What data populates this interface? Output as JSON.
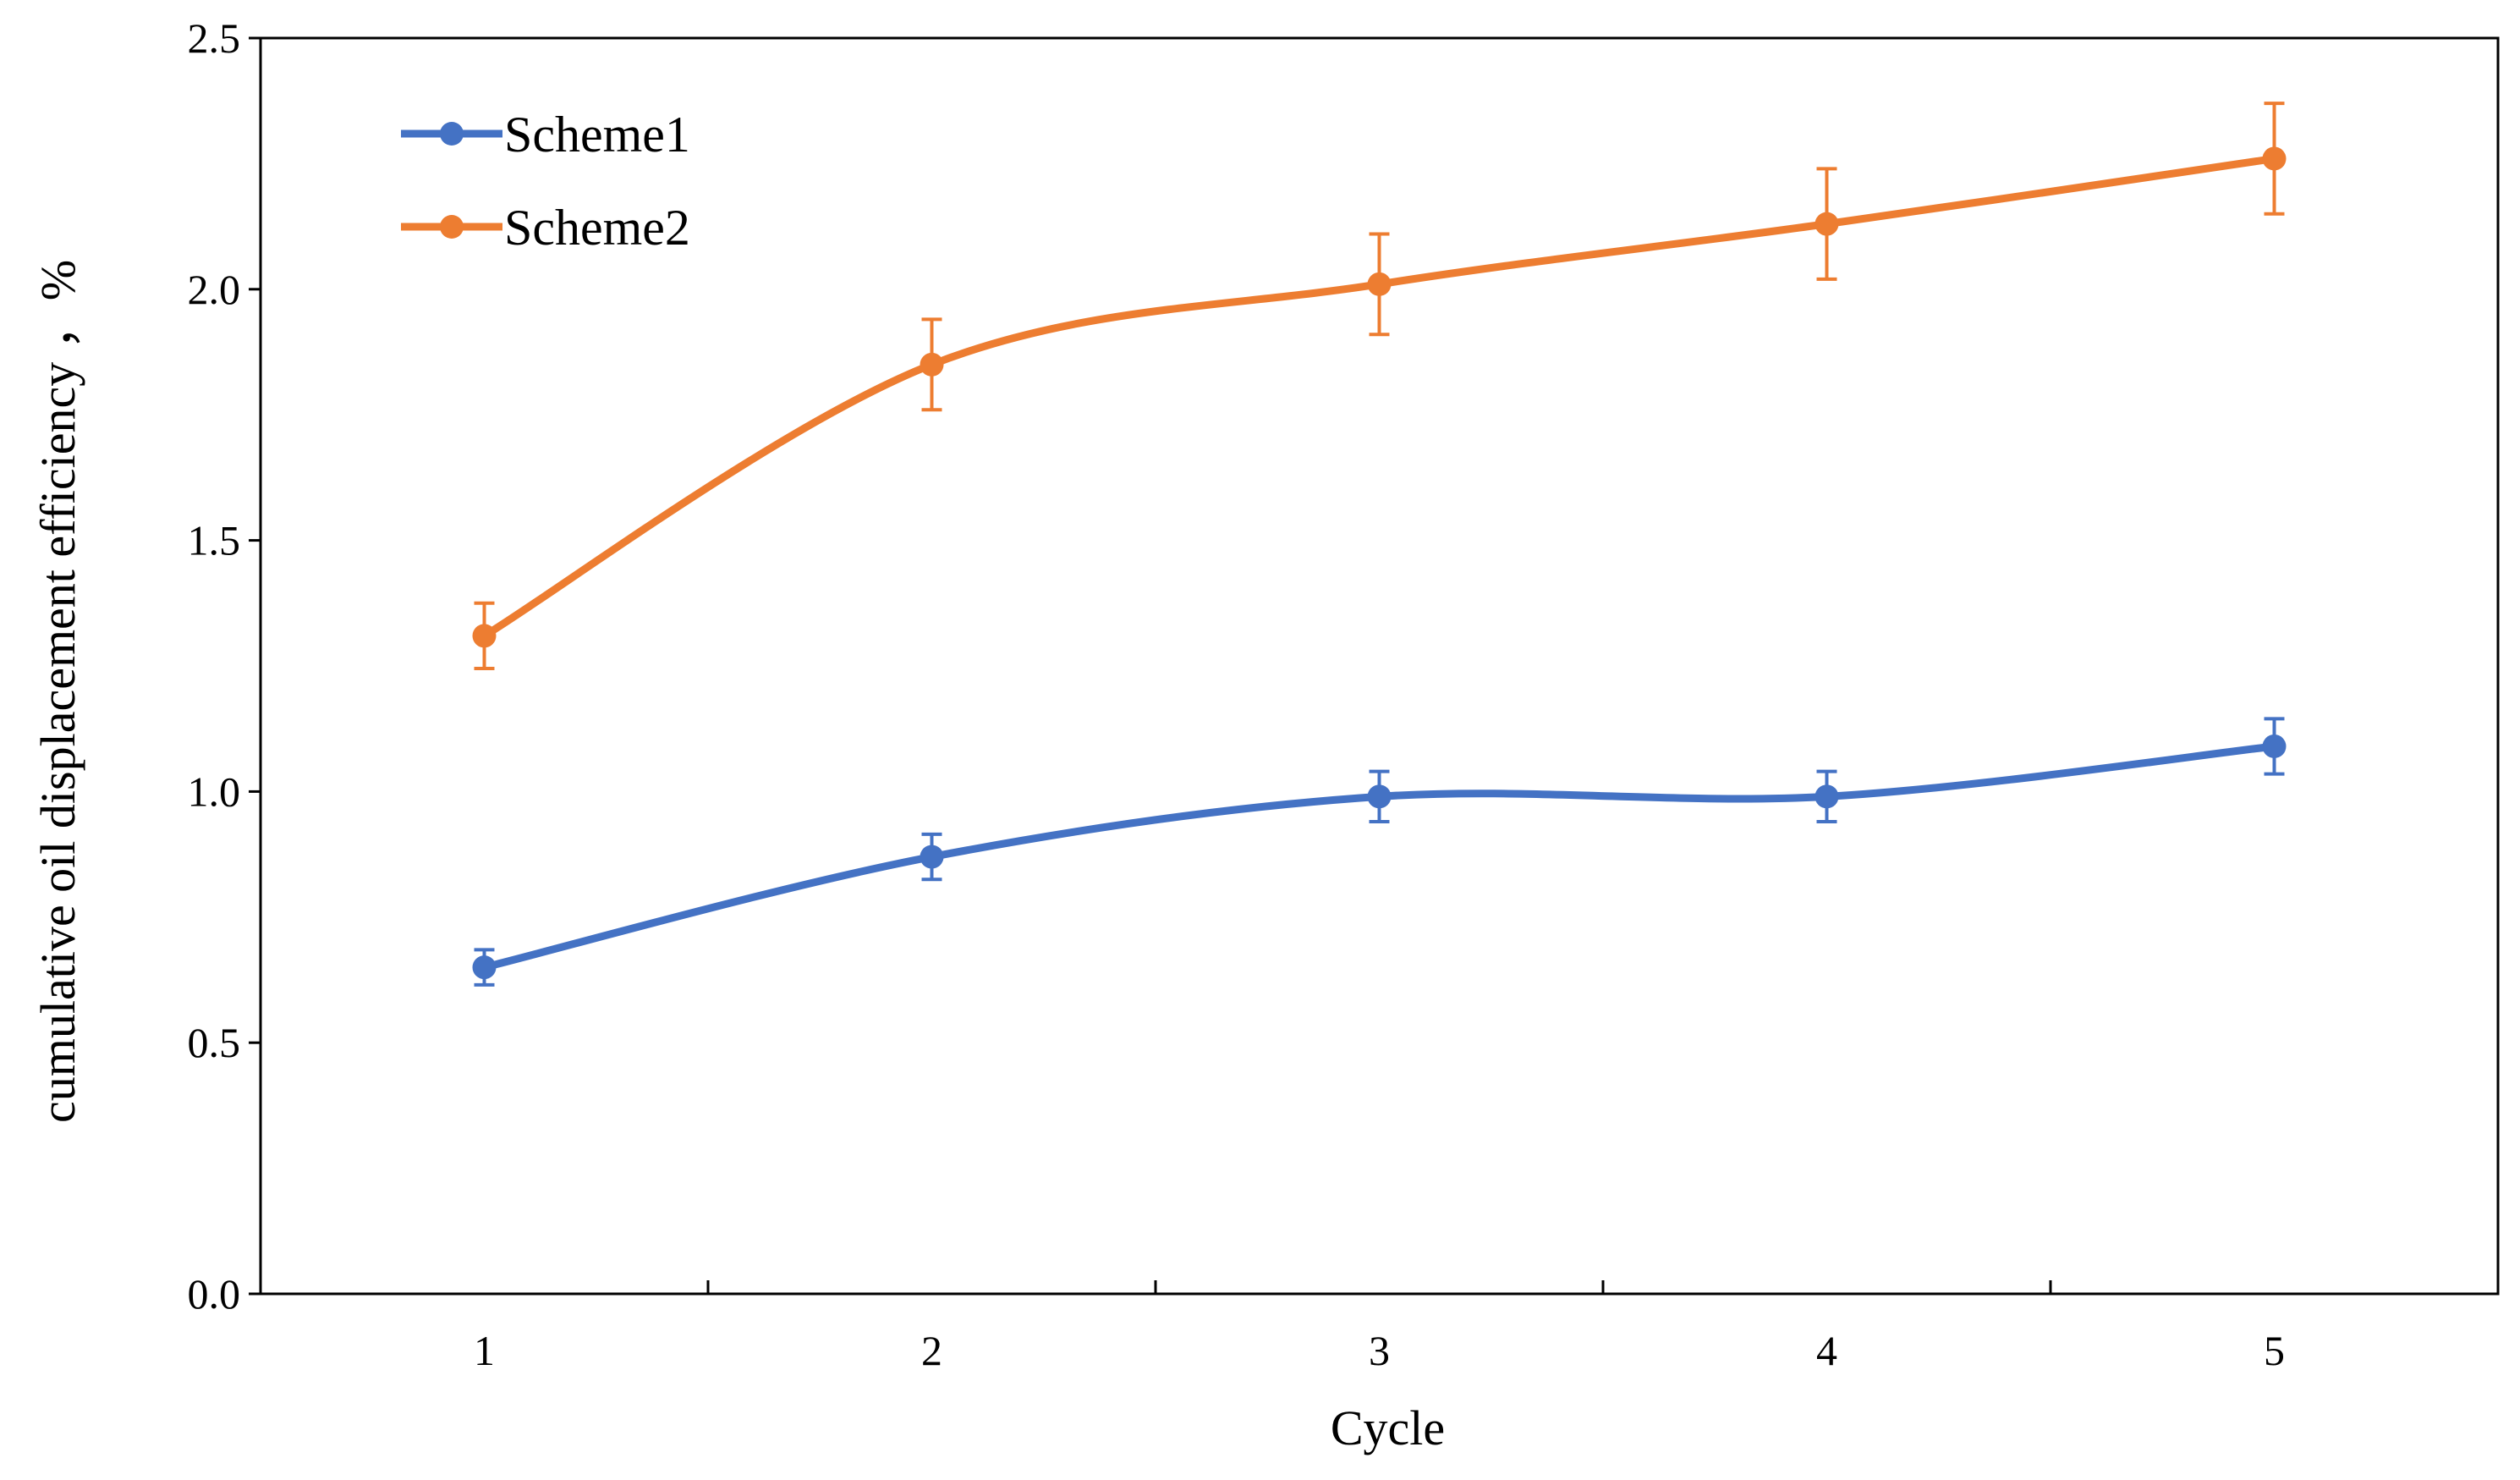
{
  "chart_data": {
    "type": "line",
    "title": "",
    "xlabel": "Cycle",
    "ylabel": "cumulative  oil displacement  efficiency ，%",
    "x": [
      1,
      2,
      3,
      4,
      5
    ],
    "xlim": [
      0.5,
      5.5
    ],
    "ylim": [
      0.0,
      2.5
    ],
    "yticks": [
      "0.0",
      "0.5",
      "1.0",
      "1.5",
      "2.0",
      "2.5"
    ],
    "xticks": [
      "1",
      "2",
      "3",
      "4",
      "5"
    ],
    "grid": false,
    "legend_position": "top-left",
    "smooth": true,
    "series": [
      {
        "name": "Scheme1",
        "color": "#4472C4",
        "values": [
          0.65,
          0.87,
          0.99,
          0.99,
          1.09
        ],
        "error": [
          0.035,
          0.045,
          0.05,
          0.05,
          0.055
        ]
      },
      {
        "name": "Scheme2",
        "color": "#ED7D31",
        "values": [
          1.31,
          1.85,
          2.01,
          2.13,
          2.26
        ],
        "error": [
          0.065,
          0.09,
          0.1,
          0.11,
          0.11
        ]
      }
    ]
  }
}
